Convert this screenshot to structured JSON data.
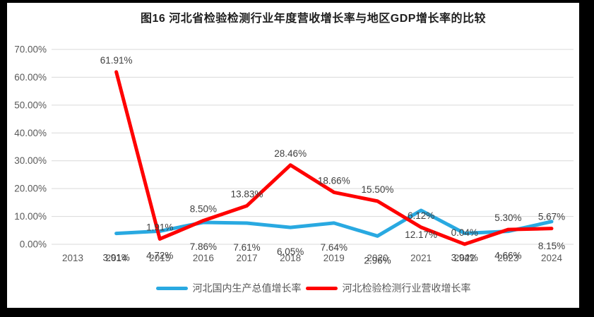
{
  "frame": {
    "outer_background": "#000000",
    "canvas_background": "#ffffff",
    "gridline_color": "#d9d9d9",
    "axis_text_color": "#595959",
    "data_label_color": "#3f3f3f"
  },
  "chart_data": {
    "type": "line",
    "title": "图16 河北省检验检测行业年度营收增长率与地区GDP增长率的比较",
    "categories": [
      "2013",
      "2014",
      "2015",
      "2016",
      "2017",
      "2018",
      "2019",
      "2020",
      "2021",
      "2022",
      "2023",
      "2024"
    ],
    "series": [
      {
        "name": "河北国内生产总值增长率",
        "color": "#29A9E1",
        "label_position": "below",
        "values": [
          null,
          3.91,
          4.72,
          7.86,
          7.61,
          6.05,
          7.64,
          2.96,
          12.17,
          3.94,
          4.66,
          8.15
        ]
      },
      {
        "name": "河北检验检测行业营收增长率",
        "color": "#FF0000",
        "label_position": "above",
        "values": [
          null,
          61.91,
          1.91,
          8.5,
          13.83,
          28.46,
          18.66,
          15.5,
          6.12,
          0.04,
          5.3,
          5.67
        ]
      }
    ],
    "y_ticks": [
      "0.00%",
      "10.00%",
      "20.00%",
      "30.00%",
      "40.00%",
      "50.00%",
      "60.00%",
      "70.00%"
    ],
    "ylim": [
      0,
      70
    ],
    "xlabel": "",
    "ylabel": "",
    "grid": true,
    "legend_position": "bottom",
    "data_label_format": "0.00%"
  }
}
